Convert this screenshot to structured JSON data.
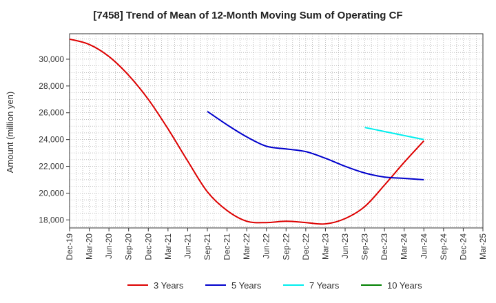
{
  "chart_data": {
    "type": "line",
    "title": "[7458]  Trend of Mean of 12-Month Moving Sum of Operating CF",
    "xlabel": "",
    "ylabel": "Amount (million yen)",
    "ylim": [
      17400,
      31900
    ],
    "yticks": [
      18000,
      20000,
      22000,
      24000,
      26000,
      28000,
      30000
    ],
    "ytick_labels": [
      "18,000",
      "20,000",
      "22,000",
      "24,000",
      "26,000",
      "28,000",
      "30,000"
    ],
    "grid": true,
    "legend_position": "bottom",
    "x_categories": [
      "Dec-19",
      "Mar-20",
      "Jun-20",
      "Sep-20",
      "Dec-20",
      "Mar-21",
      "Jun-21",
      "Sep-21",
      "Dec-21",
      "Mar-22",
      "Jun-22",
      "Sep-22",
      "Dec-22",
      "Mar-23",
      "Jun-23",
      "Sep-23",
      "Dec-23",
      "Mar-24",
      "Jun-24",
      "Sep-24",
      "Dec-24",
      "Mar-25"
    ],
    "series": [
      {
        "name": "3 Years",
        "color": "#dd0000",
        "start_index": 0,
        "values": [
          31500,
          31100,
          30200,
          28800,
          27000,
          24800,
          22400,
          20100,
          18700,
          17900,
          17800,
          17900,
          17800,
          17700,
          18100,
          19000,
          20600,
          22300,
          23900
        ]
      },
      {
        "name": "5 Years",
        "color": "#0000cc",
        "start_index": 7,
        "values": [
          26100,
          25100,
          24200,
          23500,
          23300,
          23100,
          22600,
          22000,
          21500,
          21200,
          21100,
          21000
        ]
      },
      {
        "name": "7 Years",
        "color": "#00eeee",
        "start_index": 15,
        "values": [
          24900,
          24600,
          24300,
          24000
        ]
      },
      {
        "name": "10 Years",
        "color": "#008000",
        "start_index": 0,
        "values": []
      }
    ]
  }
}
